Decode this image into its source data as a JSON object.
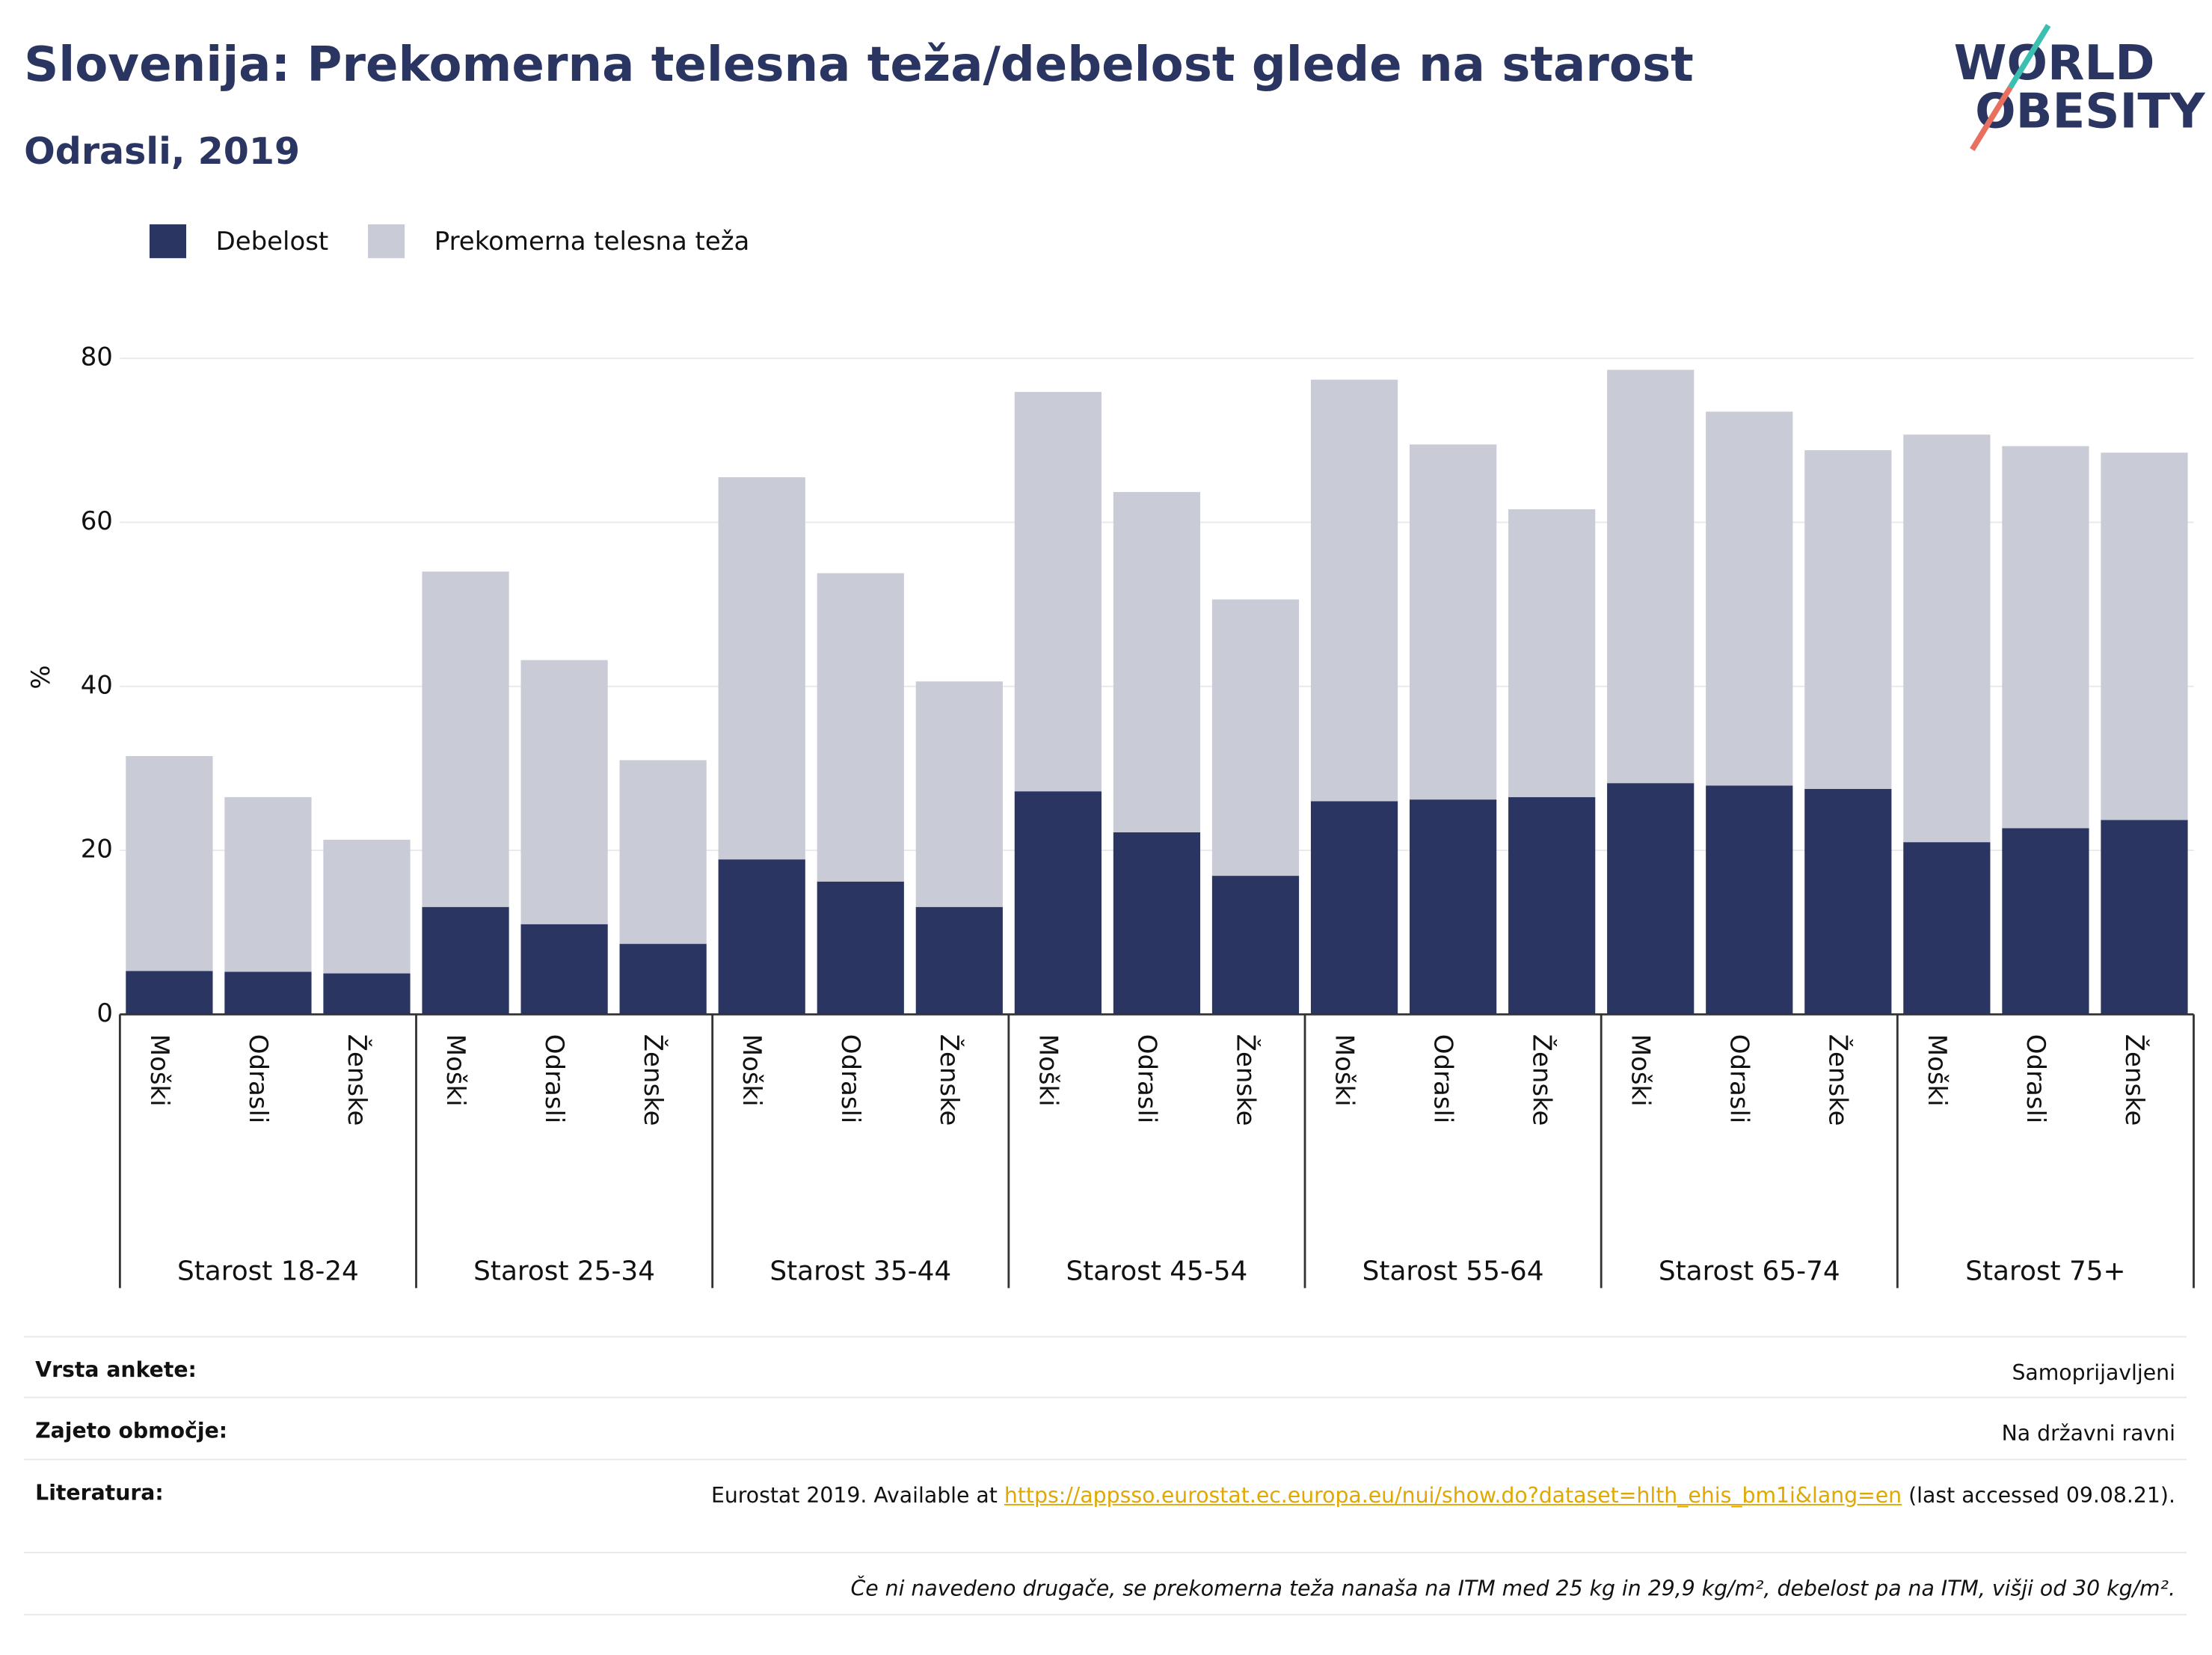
{
  "chart_data": {
    "type": "stacked-bar",
    "title": "Slovenija: Prekomerna telesna teža/debelost glede na starost",
    "subtitle": "Odrasli, 2019",
    "y_label": "%",
    "logo": [
      "WORLD",
      "OBESITY"
    ],
    "groups": [
      "Starost 18-24",
      "Starost 25-34",
      "Starost 35-44",
      "Starost 45-54",
      "Starost 55-64",
      "Starost 65-74",
      "Starost 75+"
    ],
    "categories": [
      "Moški",
      "Odrasli",
      "Ženske",
      "Moški",
      "Odrasli",
      "Ženske",
      "Moški",
      "Odrasli",
      "Ženske",
      "Moški",
      "Odrasli",
      "Ženske",
      "Moški",
      "Odrasli",
      "Ženske",
      "Moški",
      "Odrasli",
      "Ženske",
      "Moški",
      "Odrasli",
      "Ženske"
    ],
    "series": [
      {
        "name": "Debelost",
        "color": "#2a3561",
        "values": [
          5.3,
          5.2,
          5.0,
          13.1,
          11.0,
          8.6,
          18.9,
          16.2,
          13.1,
          27.2,
          22.2,
          16.9,
          26.0,
          26.2,
          26.5,
          28.2,
          27.9,
          27.5,
          21.0,
          22.7,
          23.7
        ]
      },
      {
        "name": "Prekomerna telesna teža",
        "color": "#c9cbd6",
        "values": [
          26.2,
          21.3,
          16.3,
          40.9,
          32.2,
          22.4,
          46.6,
          37.6,
          27.5,
          48.7,
          41.5,
          33.7,
          51.4,
          43.3,
          35.1,
          50.4,
          45.6,
          41.3,
          49.7,
          46.6,
          44.8
        ]
      }
    ],
    "ylim": [
      0,
      80
    ],
    "yticks": [
      0,
      20,
      40,
      60,
      80
    ],
    "grid": true,
    "legend": "top-left"
  },
  "footer": {
    "rows": [
      {
        "label": "Vrsta ankete:",
        "value": "Samoprijavljeni"
      },
      {
        "label": "Zajeto območje:",
        "value": "Na državni ravni"
      },
      {
        "label": "Literatura:",
        "prefix": "Eurostat 2019. Available at ",
        "link": "https://appsso.eurostat.ec.europa.eu/nui/show.do?dataset=hlth_ehis_bm1i&lang=en",
        "suffix": " (last accessed 09.08.21)."
      }
    ],
    "note": "Če ni navedeno drugače, se prekomerna teža nanaša na ITM med 25 kg in 29,9 kg/m², debelost pa na ITM, višji od 30 kg/m²."
  }
}
